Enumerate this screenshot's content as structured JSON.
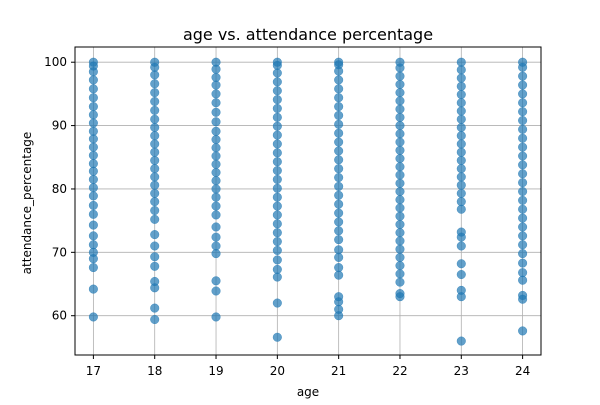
{
  "chart_data": {
    "type": "scatter",
    "title": "age vs. attendance percentage",
    "xlabel": "age",
    "ylabel": "attendance_percentage",
    "xlim": [
      16.7,
      24.3
    ],
    "ylim": [
      53.8,
      102.4
    ],
    "grid": true,
    "color": "#1f77b4",
    "x_ticks": [
      17,
      18,
      19,
      20,
      21,
      22,
      23,
      24
    ],
    "y_ticks": [
      60,
      70,
      80,
      90,
      100
    ],
    "series": [
      {
        "points": [
          {
            "x": 17,
            "y": 59.8
          },
          {
            "x": 17,
            "y": 64.2
          },
          {
            "x": 17,
            "y": 67.6
          },
          {
            "x": 17,
            "y": 69.0
          },
          {
            "x": 17,
            "y": 70.0
          },
          {
            "x": 17,
            "y": 71.2
          },
          {
            "x": 17,
            "y": 72.6
          },
          {
            "x": 17,
            "y": 74.3
          },
          {
            "x": 17,
            "y": 76.0
          },
          {
            "x": 17,
            "y": 77.4
          },
          {
            "x": 17,
            "y": 78.9
          },
          {
            "x": 17,
            "y": 80.2
          },
          {
            "x": 17,
            "y": 81.5
          },
          {
            "x": 17,
            "y": 82.8
          },
          {
            "x": 17,
            "y": 84.0
          },
          {
            "x": 17,
            "y": 85.3
          },
          {
            "x": 17,
            "y": 86.6
          },
          {
            "x": 17,
            "y": 87.9
          },
          {
            "x": 17,
            "y": 89.1
          },
          {
            "x": 17,
            "y": 90.4
          },
          {
            "x": 17,
            "y": 91.7
          },
          {
            "x": 17,
            "y": 93.0
          },
          {
            "x": 17,
            "y": 94.4
          },
          {
            "x": 17,
            "y": 95.8
          },
          {
            "x": 17,
            "y": 97.2
          },
          {
            "x": 17,
            "y": 98.5
          },
          {
            "x": 17,
            "y": 99.4
          },
          {
            "x": 17,
            "y": 100.0
          },
          {
            "x": 18,
            "y": 59.4
          },
          {
            "x": 18,
            "y": 61.2
          },
          {
            "x": 18,
            "y": 64.4
          },
          {
            "x": 18,
            "y": 65.4
          },
          {
            "x": 18,
            "y": 67.8
          },
          {
            "x": 18,
            "y": 69.3
          },
          {
            "x": 18,
            "y": 71.0
          },
          {
            "x": 18,
            "y": 72.8
          },
          {
            "x": 18,
            "y": 75.2
          },
          {
            "x": 18,
            "y": 76.6
          },
          {
            "x": 18,
            "y": 78.0
          },
          {
            "x": 18,
            "y": 79.3
          },
          {
            "x": 18,
            "y": 80.6
          },
          {
            "x": 18,
            "y": 81.9
          },
          {
            "x": 18,
            "y": 83.2
          },
          {
            "x": 18,
            "y": 84.5
          },
          {
            "x": 18,
            "y": 85.8
          },
          {
            "x": 18,
            "y": 87.1
          },
          {
            "x": 18,
            "y": 88.4
          },
          {
            "x": 18,
            "y": 89.7
          },
          {
            "x": 18,
            "y": 91.0
          },
          {
            "x": 18,
            "y": 92.4
          },
          {
            "x": 18,
            "y": 93.8
          },
          {
            "x": 18,
            "y": 95.2
          },
          {
            "x": 18,
            "y": 96.6
          },
          {
            "x": 18,
            "y": 98.0
          },
          {
            "x": 18,
            "y": 99.2
          },
          {
            "x": 18,
            "y": 100.0
          },
          {
            "x": 19,
            "y": 59.8
          },
          {
            "x": 19,
            "y": 63.9
          },
          {
            "x": 19,
            "y": 65.5
          },
          {
            "x": 19,
            "y": 69.8
          },
          {
            "x": 19,
            "y": 71.0
          },
          {
            "x": 19,
            "y": 72.4
          },
          {
            "x": 19,
            "y": 74.0
          },
          {
            "x": 19,
            "y": 75.9
          },
          {
            "x": 19,
            "y": 77.3
          },
          {
            "x": 19,
            "y": 78.7
          },
          {
            "x": 19,
            "y": 80.0
          },
          {
            "x": 19,
            "y": 81.3
          },
          {
            "x": 19,
            "y": 82.6
          },
          {
            "x": 19,
            "y": 83.9
          },
          {
            "x": 19,
            "y": 85.2
          },
          {
            "x": 19,
            "y": 86.5
          },
          {
            "x": 19,
            "y": 87.8
          },
          {
            "x": 19,
            "y": 89.1
          },
          {
            "x": 19,
            "y": 90.6
          },
          {
            "x": 19,
            "y": 92.1
          },
          {
            "x": 19,
            "y": 93.6
          },
          {
            "x": 19,
            "y": 95.0
          },
          {
            "x": 19,
            "y": 96.4
          },
          {
            "x": 19,
            "y": 97.6
          },
          {
            "x": 19,
            "y": 98.9
          },
          {
            "x": 19,
            "y": 100.0
          },
          {
            "x": 20,
            "y": 56.6
          },
          {
            "x": 20,
            "y": 62.0
          },
          {
            "x": 20,
            "y": 66.1
          },
          {
            "x": 20,
            "y": 67.3
          },
          {
            "x": 20,
            "y": 68.8
          },
          {
            "x": 20,
            "y": 70.3
          },
          {
            "x": 20,
            "y": 71.7
          },
          {
            "x": 20,
            "y": 73.1
          },
          {
            "x": 20,
            "y": 74.5
          },
          {
            "x": 20,
            "y": 75.9
          },
          {
            "x": 20,
            "y": 77.3
          },
          {
            "x": 20,
            "y": 78.7
          },
          {
            "x": 20,
            "y": 80.1
          },
          {
            "x": 20,
            "y": 81.5
          },
          {
            "x": 20,
            "y": 82.9
          },
          {
            "x": 20,
            "y": 84.3
          },
          {
            "x": 20,
            "y": 85.7
          },
          {
            "x": 20,
            "y": 87.1
          },
          {
            "x": 20,
            "y": 88.5
          },
          {
            "x": 20,
            "y": 89.9
          },
          {
            "x": 20,
            "y": 91.3
          },
          {
            "x": 20,
            "y": 92.7
          },
          {
            "x": 20,
            "y": 94.1
          },
          {
            "x": 20,
            "y": 95.5
          },
          {
            "x": 20,
            "y": 96.9
          },
          {
            "x": 20,
            "y": 98.3
          },
          {
            "x": 20,
            "y": 99.5
          },
          {
            "x": 20,
            "y": 100.0
          },
          {
            "x": 21,
            "y": 60.0
          },
          {
            "x": 21,
            "y": 61.0
          },
          {
            "x": 21,
            "y": 62.2
          },
          {
            "x": 21,
            "y": 63.0
          },
          {
            "x": 21,
            "y": 66.4
          },
          {
            "x": 21,
            "y": 67.6
          },
          {
            "x": 21,
            "y": 69.2
          },
          {
            "x": 21,
            "y": 70.4
          },
          {
            "x": 21,
            "y": 72.0
          },
          {
            "x": 21,
            "y": 73.4
          },
          {
            "x": 21,
            "y": 74.8
          },
          {
            "x": 21,
            "y": 76.2
          },
          {
            "x": 21,
            "y": 77.6
          },
          {
            "x": 21,
            "y": 79.0
          },
          {
            "x": 21,
            "y": 80.4
          },
          {
            "x": 21,
            "y": 81.8
          },
          {
            "x": 21,
            "y": 83.2
          },
          {
            "x": 21,
            "y": 84.6
          },
          {
            "x": 21,
            "y": 86.0
          },
          {
            "x": 21,
            "y": 87.4
          },
          {
            "x": 21,
            "y": 88.8
          },
          {
            "x": 21,
            "y": 90.2
          },
          {
            "x": 21,
            "y": 91.6
          },
          {
            "x": 21,
            "y": 93.0
          },
          {
            "x": 21,
            "y": 94.4
          },
          {
            "x": 21,
            "y": 95.8
          },
          {
            "x": 21,
            "y": 97.2
          },
          {
            "x": 21,
            "y": 98.6
          },
          {
            "x": 21,
            "y": 99.6
          },
          {
            "x": 21,
            "y": 100.0
          },
          {
            "x": 22,
            "y": 63.0
          },
          {
            "x": 22,
            "y": 63.5
          },
          {
            "x": 22,
            "y": 65.3
          },
          {
            "x": 22,
            "y": 66.6
          },
          {
            "x": 22,
            "y": 67.9
          },
          {
            "x": 22,
            "y": 69.2
          },
          {
            "x": 22,
            "y": 70.5
          },
          {
            "x": 22,
            "y": 71.8
          },
          {
            "x": 22,
            "y": 73.1
          },
          {
            "x": 22,
            "y": 74.4
          },
          {
            "x": 22,
            "y": 75.7
          },
          {
            "x": 22,
            "y": 77.0
          },
          {
            "x": 22,
            "y": 78.3
          },
          {
            "x": 22,
            "y": 79.6
          },
          {
            "x": 22,
            "y": 80.9
          },
          {
            "x": 22,
            "y": 82.2
          },
          {
            "x": 22,
            "y": 83.5
          },
          {
            "x": 22,
            "y": 84.8
          },
          {
            "x": 22,
            "y": 86.1
          },
          {
            "x": 22,
            "y": 87.4
          },
          {
            "x": 22,
            "y": 88.7
          },
          {
            "x": 22,
            "y": 90.0
          },
          {
            "x": 22,
            "y": 91.3
          },
          {
            "x": 22,
            "y": 92.6
          },
          {
            "x": 22,
            "y": 93.9
          },
          {
            "x": 22,
            "y": 95.2
          },
          {
            "x": 22,
            "y": 96.5
          },
          {
            "x": 22,
            "y": 97.8
          },
          {
            "x": 22,
            "y": 99.1
          },
          {
            "x": 22,
            "y": 100.0
          },
          {
            "x": 23,
            "y": 56.0
          },
          {
            "x": 23,
            "y": 63.0
          },
          {
            "x": 23,
            "y": 64.0
          },
          {
            "x": 23,
            "y": 66.5
          },
          {
            "x": 23,
            "y": 68.2
          },
          {
            "x": 23,
            "y": 71.0
          },
          {
            "x": 23,
            "y": 72.4
          },
          {
            "x": 23,
            "y": 73.2
          },
          {
            "x": 23,
            "y": 76.8
          },
          {
            "x": 23,
            "y": 78.0
          },
          {
            "x": 23,
            "y": 79.3
          },
          {
            "x": 23,
            "y": 80.6
          },
          {
            "x": 23,
            "y": 81.9
          },
          {
            "x": 23,
            "y": 83.2
          },
          {
            "x": 23,
            "y": 84.5
          },
          {
            "x": 23,
            "y": 85.8
          },
          {
            "x": 23,
            "y": 87.1
          },
          {
            "x": 23,
            "y": 88.4
          },
          {
            "x": 23,
            "y": 89.7
          },
          {
            "x": 23,
            "y": 91.0
          },
          {
            "x": 23,
            "y": 92.3
          },
          {
            "x": 23,
            "y": 93.6
          },
          {
            "x": 23,
            "y": 94.9
          },
          {
            "x": 23,
            "y": 96.2
          },
          {
            "x": 23,
            "y": 97.5
          },
          {
            "x": 23,
            "y": 98.8
          },
          {
            "x": 23,
            "y": 100.0
          },
          {
            "x": 24,
            "y": 57.6
          },
          {
            "x": 24,
            "y": 62.6
          },
          {
            "x": 24,
            "y": 63.2
          },
          {
            "x": 24,
            "y": 65.6
          },
          {
            "x": 24,
            "y": 66.8
          },
          {
            "x": 24,
            "y": 68.3
          },
          {
            "x": 24,
            "y": 69.8
          },
          {
            "x": 24,
            "y": 71.2
          },
          {
            "x": 24,
            "y": 72.6
          },
          {
            "x": 24,
            "y": 74.0
          },
          {
            "x": 24,
            "y": 75.4
          },
          {
            "x": 24,
            "y": 76.8
          },
          {
            "x": 24,
            "y": 78.2
          },
          {
            "x": 24,
            "y": 79.6
          },
          {
            "x": 24,
            "y": 81.0
          },
          {
            "x": 24,
            "y": 82.4
          },
          {
            "x": 24,
            "y": 83.8
          },
          {
            "x": 24,
            "y": 85.2
          },
          {
            "x": 24,
            "y": 86.6
          },
          {
            "x": 24,
            "y": 88.0
          },
          {
            "x": 24,
            "y": 89.4
          },
          {
            "x": 24,
            "y": 90.8
          },
          {
            "x": 24,
            "y": 92.2
          },
          {
            "x": 24,
            "y": 93.6
          },
          {
            "x": 24,
            "y": 95.0
          },
          {
            "x": 24,
            "y": 96.4
          },
          {
            "x": 24,
            "y": 97.8
          },
          {
            "x": 24,
            "y": 99.2
          },
          {
            "x": 24,
            "y": 100.0
          }
        ]
      }
    ]
  }
}
